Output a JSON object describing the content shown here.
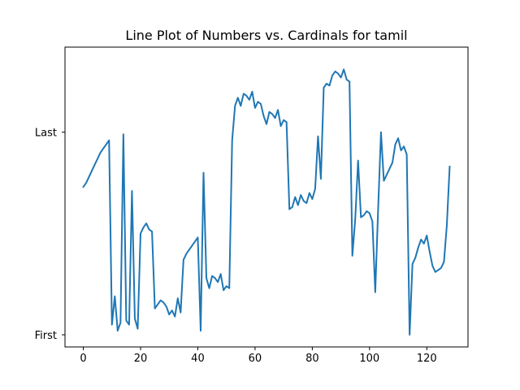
{
  "chart_data": {
    "type": "line",
    "title": "Line Plot of Numbers vs. Cardinals for tamil",
    "xlabel": "",
    "ylabel": "",
    "xlim": [
      -6.4,
      134.4
    ],
    "ylim": [
      -0.06,
      1.42
    ],
    "x_ticks": [
      0,
      20,
      40,
      60,
      80,
      100,
      120
    ],
    "y_ticks": [
      {
        "value": 0,
        "label": "First"
      },
      {
        "value": 1,
        "label": "Last"
      }
    ],
    "grid": false,
    "series": [
      {
        "name": "tamil",
        "color": "#1f77b4",
        "x": [
          0,
          1,
          2,
          3,
          4,
          5,
          6,
          7,
          8,
          9,
          10,
          11,
          12,
          13,
          14,
          15,
          16,
          17,
          18,
          19,
          20,
          21,
          22,
          23,
          24,
          25,
          26,
          27,
          28,
          29,
          30,
          31,
          32,
          33,
          34,
          35,
          36,
          37,
          38,
          39,
          40,
          41,
          42,
          43,
          44,
          45,
          46,
          47,
          48,
          49,
          50,
          51,
          52,
          53,
          54,
          55,
          56,
          57,
          58,
          59,
          60,
          61,
          62,
          63,
          64,
          65,
          66,
          67,
          68,
          69,
          70,
          71,
          72,
          73,
          74,
          75,
          76,
          77,
          78,
          79,
          80,
          81,
          82,
          83,
          84,
          85,
          86,
          87,
          88,
          89,
          90,
          91,
          92,
          93,
          94,
          95,
          96,
          97,
          98,
          99,
          100,
          101,
          102,
          103,
          104,
          105,
          106,
          107,
          108,
          109,
          110,
          111,
          112,
          113,
          114,
          115,
          116,
          117,
          118,
          119,
          120,
          121,
          122,
          123,
          124,
          125,
          126,
          127,
          128
        ],
        "values": [
          0.73,
          0.75,
          0.78,
          0.81,
          0.84,
          0.87,
          0.9,
          0.92,
          0.94,
          0.96,
          0.05,
          0.19,
          0.02,
          0.06,
          0.99,
          0.07,
          0.05,
          0.71,
          0.08,
          0.03,
          0.5,
          0.53,
          0.55,
          0.52,
          0.51,
          0.13,
          0.15,
          0.17,
          0.16,
          0.14,
          0.1,
          0.12,
          0.09,
          0.18,
          0.11,
          0.37,
          0.4,
          0.42,
          0.44,
          0.46,
          0.48,
          0.02,
          0.8,
          0.28,
          0.23,
          0.29,
          0.28,
          0.26,
          0.3,
          0.22,
          0.24,
          0.23,
          0.96,
          1.13,
          1.17,
          1.13,
          1.19,
          1.18,
          1.16,
          1.2,
          1.12,
          1.15,
          1.14,
          1.08,
          1.04,
          1.1,
          1.09,
          1.07,
          1.11,
          1.03,
          1.06,
          1.05,
          0.62,
          0.63,
          0.68,
          0.64,
          0.69,
          0.66,
          0.65,
          0.7,
          0.67,
          0.72,
          0.98,
          0.77,
          1.22,
          1.24,
          1.23,
          1.28,
          1.3,
          1.29,
          1.27,
          1.31,
          1.26,
          1.25,
          0.39,
          0.57,
          0.86,
          0.58,
          0.59,
          0.61,
          0.6,
          0.56,
          0.21,
          0.62,
          1.0,
          0.76,
          0.79,
          0.82,
          0.85,
          0.94,
          0.97,
          0.91,
          0.93,
          0.89,
          0.0,
          0.35,
          0.38,
          0.43,
          0.47,
          0.45,
          0.49,
          0.41,
          0.34,
          0.31,
          0.32,
          0.33,
          0.36,
          0.54,
          0.83
        ]
      }
    ]
  }
}
